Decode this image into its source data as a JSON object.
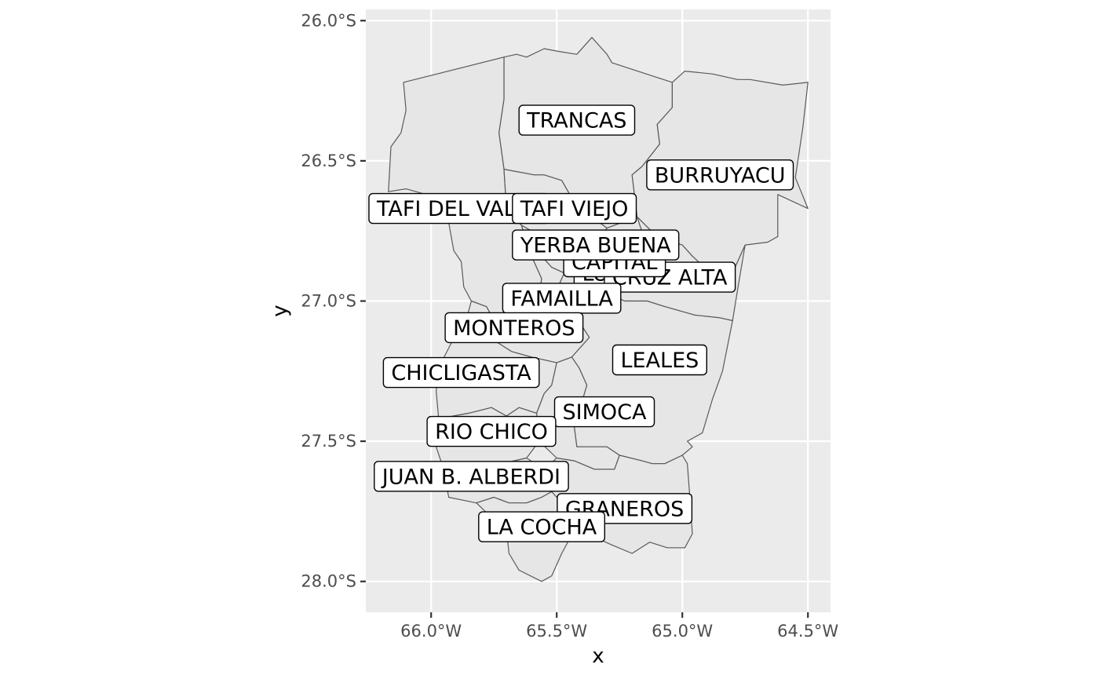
{
  "axes": {
    "x_title": "x",
    "y_title": "y",
    "x_ticks": [
      {
        "value": -66.0,
        "label": "66.0°W"
      },
      {
        "value": -65.5,
        "label": "65.5°W"
      },
      {
        "value": -65.0,
        "label": "65.0°W"
      },
      {
        "value": -64.5,
        "label": "64.5°W"
      }
    ],
    "y_ticks": [
      {
        "value": -26.0,
        "label": "26.0°S"
      },
      {
        "value": -26.5,
        "label": "26.5°S"
      },
      {
        "value": -27.0,
        "label": "27.0°S"
      },
      {
        "value": -27.5,
        "label": "27.5°S"
      },
      {
        "value": -28.0,
        "label": "28.0°S"
      }
    ],
    "xlim": [
      -66.26,
      -64.41
    ],
    "ylim": [
      -28.11,
      -25.96
    ]
  },
  "colors": {
    "panel_background": "#ebebeb",
    "grid": "#ffffff",
    "region_fill": "#e6e6e6",
    "region_border": "#5a5a5a"
  },
  "labels": [
    {
      "name": "TRANCAS",
      "lon": -65.42,
      "lat": -26.355
    },
    {
      "name": "BURRUYACU",
      "lon": -64.85,
      "lat": -26.55
    },
    {
      "name": "TAFI DEL VALLE",
      "lon": -65.89,
      "lat": -26.67
    },
    {
      "name": "TAFI VIEJO",
      "lon": -65.43,
      "lat": -26.67
    },
    {
      "name": "LULES",
      "lon": -65.27,
      "lat": -26.9
    },
    {
      "name": "CRUZ ALTA",
      "lon": -65.05,
      "lat": -26.915
    },
    {
      "name": "CAPITAL",
      "lon": -65.27,
      "lat": -26.86
    },
    {
      "name": "YERBA BUENA",
      "lon": -65.345,
      "lat": -26.8
    },
    {
      "name": "FAMAILLA",
      "lon": -65.48,
      "lat": -26.99
    },
    {
      "name": "MONTEROS",
      "lon": -65.67,
      "lat": -27.095
    },
    {
      "name": "LEALES",
      "lon": -65.09,
      "lat": -27.21
    },
    {
      "name": "CHICLIGASTA",
      "lon": -65.88,
      "lat": -27.255
    },
    {
      "name": "SIMOCA",
      "lon": -65.31,
      "lat": -27.395
    },
    {
      "name": "RIO CHICO",
      "lon": -65.76,
      "lat": -27.465
    },
    {
      "name": "JUAN B. ALBERDI",
      "lon": -65.84,
      "lat": -27.625
    },
    {
      "name": "GRANEROS",
      "lon": -65.23,
      "lat": -27.74
    },
    {
      "name": "LA COCHA",
      "lon": -65.56,
      "lat": -27.805
    }
  ],
  "regions": [
    {
      "name": "TRANCAS",
      "coords": [
        [
          -65.71,
          -26.13
        ],
        [
          -65.66,
          -26.12
        ],
        [
          -65.62,
          -26.13
        ],
        [
          -65.55,
          -26.1
        ],
        [
          -65.49,
          -26.11
        ],
        [
          -65.42,
          -26.12
        ],
        [
          -65.36,
          -26.06
        ],
        [
          -65.3,
          -26.12
        ],
        [
          -65.28,
          -26.15
        ],
        [
          -65.11,
          -26.2
        ],
        [
          -65.04,
          -26.22
        ],
        [
          -65.04,
          -26.31
        ],
        [
          -65.1,
          -26.37
        ],
        [
          -65.09,
          -26.44
        ],
        [
          -65.16,
          -26.52
        ],
        [
          -65.2,
          -26.55
        ],
        [
          -65.18,
          -26.7
        ],
        [
          -65.3,
          -26.74
        ],
        [
          -65.33,
          -26.72
        ],
        [
          -65.41,
          -26.68
        ],
        [
          -65.48,
          -26.57
        ],
        [
          -65.55,
          -26.55
        ],
        [
          -65.59,
          -26.55
        ],
        [
          -65.71,
          -26.53
        ],
        [
          -65.73,
          -26.4
        ],
        [
          -65.71,
          -26.28
        ]
      ]
    },
    {
      "name": "BURRUYACU",
      "coords": [
        [
          -65.04,
          -26.22
        ],
        [
          -64.99,
          -26.18
        ],
        [
          -64.88,
          -26.19
        ],
        [
          -64.78,
          -26.21
        ],
        [
          -64.73,
          -26.21
        ],
        [
          -64.6,
          -26.23
        ],
        [
          -64.5,
          -26.22
        ],
        [
          -64.52,
          -26.38
        ],
        [
          -64.55,
          -26.56
        ],
        [
          -64.5,
          -26.67
        ],
        [
          -64.62,
          -26.62
        ],
        [
          -64.62,
          -26.77
        ],
        [
          -64.66,
          -26.79
        ],
        [
          -64.75,
          -26.8
        ],
        [
          -64.8,
          -26.9
        ],
        [
          -64.9,
          -26.89
        ],
        [
          -64.96,
          -26.84
        ],
        [
          -65.0,
          -26.8
        ],
        [
          -65.09,
          -26.78
        ],
        [
          -65.18,
          -26.7
        ],
        [
          -65.2,
          -26.55
        ],
        [
          -65.16,
          -26.52
        ],
        [
          -65.09,
          -26.44
        ],
        [
          -65.1,
          -26.37
        ],
        [
          -65.04,
          -26.31
        ]
      ]
    },
    {
      "name": "TAFI DEL VALLE",
      "coords": [
        [
          -66.11,
          -26.22
        ],
        [
          -66.1,
          -26.32
        ],
        [
          -66.12,
          -26.4
        ],
        [
          -66.16,
          -26.45
        ],
        [
          -66.17,
          -26.61
        ],
        [
          -66.1,
          -26.6
        ],
        [
          -65.98,
          -26.63
        ],
        [
          -65.93,
          -26.72
        ],
        [
          -65.91,
          -26.82
        ],
        [
          -65.88,
          -26.86
        ],
        [
          -65.87,
          -26.95
        ],
        [
          -65.84,
          -27.0
        ],
        [
          -65.78,
          -27.02
        ],
        [
          -65.73,
          -27.1
        ],
        [
          -65.6,
          -27.08
        ],
        [
          -65.58,
          -27.04
        ],
        [
          -65.56,
          -26.92
        ],
        [
          -65.61,
          -26.82
        ],
        [
          -65.64,
          -26.73
        ],
        [
          -65.7,
          -26.67
        ],
        [
          -65.71,
          -26.53
        ],
        [
          -65.73,
          -26.4
        ],
        [
          -65.71,
          -26.28
        ],
        [
          -65.71,
          -26.13
        ]
      ]
    },
    {
      "name": "TAFI VIEJO",
      "coords": [
        [
          -65.71,
          -26.53
        ],
        [
          -65.59,
          -26.55
        ],
        [
          -65.55,
          -26.55
        ],
        [
          -65.48,
          -26.57
        ],
        [
          -65.41,
          -26.68
        ],
        [
          -65.33,
          -26.72
        ],
        [
          -65.3,
          -26.74
        ],
        [
          -65.34,
          -26.79
        ],
        [
          -65.45,
          -26.84
        ],
        [
          -65.52,
          -26.8
        ],
        [
          -65.58,
          -26.76
        ],
        [
          -65.64,
          -26.73
        ],
        [
          -65.7,
          -26.67
        ]
      ]
    },
    {
      "name": "YERBA BUENA",
      "coords": [
        [
          -65.64,
          -26.73
        ],
        [
          -65.58,
          -26.76
        ],
        [
          -65.52,
          -26.8
        ],
        [
          -65.45,
          -26.84
        ],
        [
          -65.47,
          -26.9
        ],
        [
          -65.52,
          -26.88
        ],
        [
          -65.56,
          -26.84
        ],
        [
          -65.61,
          -26.82
        ]
      ]
    },
    {
      "name": "CAPITAL",
      "coords": [
        [
          -65.34,
          -26.79
        ],
        [
          -65.3,
          -26.74
        ],
        [
          -65.18,
          -26.7
        ],
        [
          -65.15,
          -26.78
        ],
        [
          -65.18,
          -26.87
        ],
        [
          -65.25,
          -26.9
        ],
        [
          -65.32,
          -26.87
        ],
        [
          -65.4,
          -26.87
        ]
      ]
    },
    {
      "name": "LULES",
      "coords": [
        [
          -65.45,
          -26.84
        ],
        [
          -65.4,
          -26.87
        ],
        [
          -65.32,
          -26.87
        ],
        [
          -65.35,
          -26.95
        ],
        [
          -65.4,
          -27.0
        ],
        [
          -65.47,
          -27.02
        ],
        [
          -65.5,
          -26.96
        ],
        [
          -65.47,
          -26.9
        ]
      ]
    },
    {
      "name": "CRUZ ALTA",
      "coords": [
        [
          -65.18,
          -26.7
        ],
        [
          -65.09,
          -26.78
        ],
        [
          -65.0,
          -26.8
        ],
        [
          -64.96,
          -26.84
        ],
        [
          -64.9,
          -26.89
        ],
        [
          -64.8,
          -26.9
        ],
        [
          -64.75,
          -26.8
        ],
        [
          -64.78,
          -26.96
        ],
        [
          -64.8,
          -27.07
        ],
        [
          -64.85,
          -27.06
        ],
        [
          -64.95,
          -27.05
        ],
        [
          -65.07,
          -27.02
        ],
        [
          -65.14,
          -27.0
        ],
        [
          -65.23,
          -27.0
        ],
        [
          -65.35,
          -26.95
        ],
        [
          -65.32,
          -26.87
        ],
        [
          -65.25,
          -26.9
        ],
        [
          -65.18,
          -26.87
        ],
        [
          -65.15,
          -26.78
        ]
      ]
    },
    {
      "name": "FAMAILLA",
      "coords": [
        [
          -65.61,
          -26.82
        ],
        [
          -65.56,
          -26.84
        ],
        [
          -65.52,
          -26.88
        ],
        [
          -65.47,
          -26.9
        ],
        [
          -65.5,
          -26.96
        ],
        [
          -65.47,
          -27.02
        ],
        [
          -65.4,
          -27.0
        ],
        [
          -65.42,
          -27.06
        ],
        [
          -65.5,
          -27.08
        ],
        [
          -65.58,
          -27.04
        ],
        [
          -65.56,
          -26.92
        ]
      ]
    },
    {
      "name": "MONTEROS",
      "coords": [
        [
          -65.58,
          -27.04
        ],
        [
          -65.5,
          -27.08
        ],
        [
          -65.42,
          -27.06
        ],
        [
          -65.37,
          -27.13
        ],
        [
          -65.44,
          -27.2
        ],
        [
          -65.5,
          -27.22
        ],
        [
          -65.6,
          -27.2
        ],
        [
          -65.68,
          -27.18
        ],
        [
          -65.75,
          -27.14
        ],
        [
          -65.73,
          -27.1
        ],
        [
          -65.6,
          -27.08
        ]
      ]
    },
    {
      "name": "LEALES",
      "coords": [
        [
          -65.4,
          -27.0
        ],
        [
          -65.35,
          -26.95
        ],
        [
          -65.23,
          -27.0
        ],
        [
          -65.14,
          -27.0
        ],
        [
          -65.07,
          -27.02
        ],
        [
          -64.95,
          -27.05
        ],
        [
          -64.85,
          -27.06
        ],
        [
          -64.8,
          -27.07
        ],
        [
          -64.84,
          -27.25
        ],
        [
          -64.88,
          -27.35
        ],
        [
          -64.92,
          -27.47
        ],
        [
          -64.98,
          -27.5
        ],
        [
          -64.96,
          -27.52
        ],
        [
          -65.0,
          -27.55
        ],
        [
          -65.07,
          -27.58
        ],
        [
          -65.12,
          -27.58
        ],
        [
          -65.16,
          -27.57
        ],
        [
          -65.25,
          -27.55
        ],
        [
          -65.3,
          -27.52
        ],
        [
          -65.42,
          -27.52
        ],
        [
          -65.43,
          -27.45
        ],
        [
          -65.38,
          -27.3
        ],
        [
          -65.41,
          -27.24
        ],
        [
          -65.44,
          -27.2
        ],
        [
          -65.37,
          -27.13
        ],
        [
          -65.42,
          -27.06
        ]
      ]
    },
    {
      "name": "CHICLIGASTA",
      "coords": [
        [
          -65.84,
          -27.0
        ],
        [
          -65.87,
          -27.1
        ],
        [
          -65.92,
          -27.15
        ],
        [
          -65.96,
          -27.22
        ],
        [
          -65.98,
          -27.32
        ],
        [
          -65.97,
          -27.42
        ],
        [
          -65.85,
          -27.4
        ],
        [
          -65.76,
          -27.38
        ],
        [
          -65.7,
          -27.41
        ],
        [
          -65.65,
          -27.38
        ],
        [
          -65.58,
          -27.4
        ],
        [
          -65.55,
          -27.33
        ],
        [
          -65.52,
          -27.3
        ],
        [
          -65.5,
          -27.22
        ],
        [
          -65.6,
          -27.2
        ],
        [
          -65.68,
          -27.18
        ],
        [
          -65.75,
          -27.14
        ],
        [
          -65.73,
          -27.1
        ],
        [
          -65.78,
          -27.02
        ]
      ]
    },
    {
      "name": "SIMOCA",
      "coords": [
        [
          -65.44,
          -27.2
        ],
        [
          -65.41,
          -27.24
        ],
        [
          -65.38,
          -27.3
        ],
        [
          -65.43,
          -27.45
        ],
        [
          -65.42,
          -27.52
        ],
        [
          -65.3,
          -27.52
        ],
        [
          -65.25,
          -27.55
        ],
        [
          -65.27,
          -27.6
        ],
        [
          -65.35,
          -27.6
        ],
        [
          -65.43,
          -27.57
        ],
        [
          -65.5,
          -27.56
        ],
        [
          -65.57,
          -27.5
        ],
        [
          -65.58,
          -27.4
        ],
        [
          -65.55,
          -27.33
        ],
        [
          -65.52,
          -27.3
        ],
        [
          -65.5,
          -27.22
        ]
      ]
    },
    {
      "name": "RIO CHICO",
      "coords": [
        [
          -65.97,
          -27.42
        ],
        [
          -65.98,
          -27.52
        ],
        [
          -65.95,
          -27.6
        ],
        [
          -65.9,
          -27.6
        ],
        [
          -65.8,
          -27.6
        ],
        [
          -65.72,
          -27.58
        ],
        [
          -65.62,
          -27.56
        ],
        [
          -65.57,
          -27.5
        ],
        [
          -65.58,
          -27.4
        ],
        [
          -65.65,
          -27.38
        ],
        [
          -65.7,
          -27.41
        ],
        [
          -65.76,
          -27.38
        ],
        [
          -65.85,
          -27.4
        ]
      ]
    },
    {
      "name": "JUAN B. ALBERDI",
      "coords": [
        [
          -65.95,
          -27.6
        ],
        [
          -65.93,
          -27.7
        ],
        [
          -65.82,
          -27.72
        ],
        [
          -65.75,
          -27.7
        ],
        [
          -65.69,
          -27.72
        ],
        [
          -65.62,
          -27.72
        ],
        [
          -65.56,
          -27.7
        ],
        [
          -65.52,
          -27.68
        ],
        [
          -65.55,
          -27.6
        ],
        [
          -65.62,
          -27.56
        ],
        [
          -65.72,
          -27.58
        ],
        [
          -65.8,
          -27.6
        ],
        [
          -65.9,
          -27.6
        ]
      ]
    },
    {
      "name": "GRANEROS",
      "coords": [
        [
          -65.43,
          -27.57
        ],
        [
          -65.35,
          -27.6
        ],
        [
          -65.27,
          -27.6
        ],
        [
          -65.25,
          -27.55
        ],
        [
          -65.16,
          -27.57
        ],
        [
          -65.12,
          -27.58
        ],
        [
          -65.07,
          -27.58
        ],
        [
          -65.0,
          -27.55
        ],
        [
          -64.98,
          -27.58
        ],
        [
          -64.97,
          -27.7
        ],
        [
          -64.96,
          -27.83
        ],
        [
          -64.99,
          -27.88
        ],
        [
          -65.06,
          -27.88
        ],
        [
          -65.13,
          -27.86
        ],
        [
          -65.2,
          -27.9
        ],
        [
          -65.28,
          -27.87
        ],
        [
          -65.38,
          -27.83
        ],
        [
          -65.45,
          -27.8
        ],
        [
          -65.48,
          -27.72
        ],
        [
          -65.52,
          -27.68
        ],
        [
          -65.55,
          -27.6
        ],
        [
          -65.5,
          -27.56
        ]
      ]
    },
    {
      "name": "LA COCHA",
      "coords": [
        [
          -65.82,
          -27.72
        ],
        [
          -65.75,
          -27.78
        ],
        [
          -65.7,
          -27.82
        ],
        [
          -65.69,
          -27.9
        ],
        [
          -65.65,
          -27.96
        ],
        [
          -65.56,
          -28.0
        ],
        [
          -65.52,
          -27.98
        ],
        [
          -65.48,
          -27.9
        ],
        [
          -65.45,
          -27.85
        ],
        [
          -65.45,
          -27.8
        ],
        [
          -65.48,
          -27.72
        ],
        [
          -65.52,
          -27.68
        ],
        [
          -65.56,
          -27.7
        ],
        [
          -65.62,
          -27.72
        ],
        [
          -65.69,
          -27.72
        ],
        [
          -65.75,
          -27.7
        ]
      ]
    }
  ]
}
